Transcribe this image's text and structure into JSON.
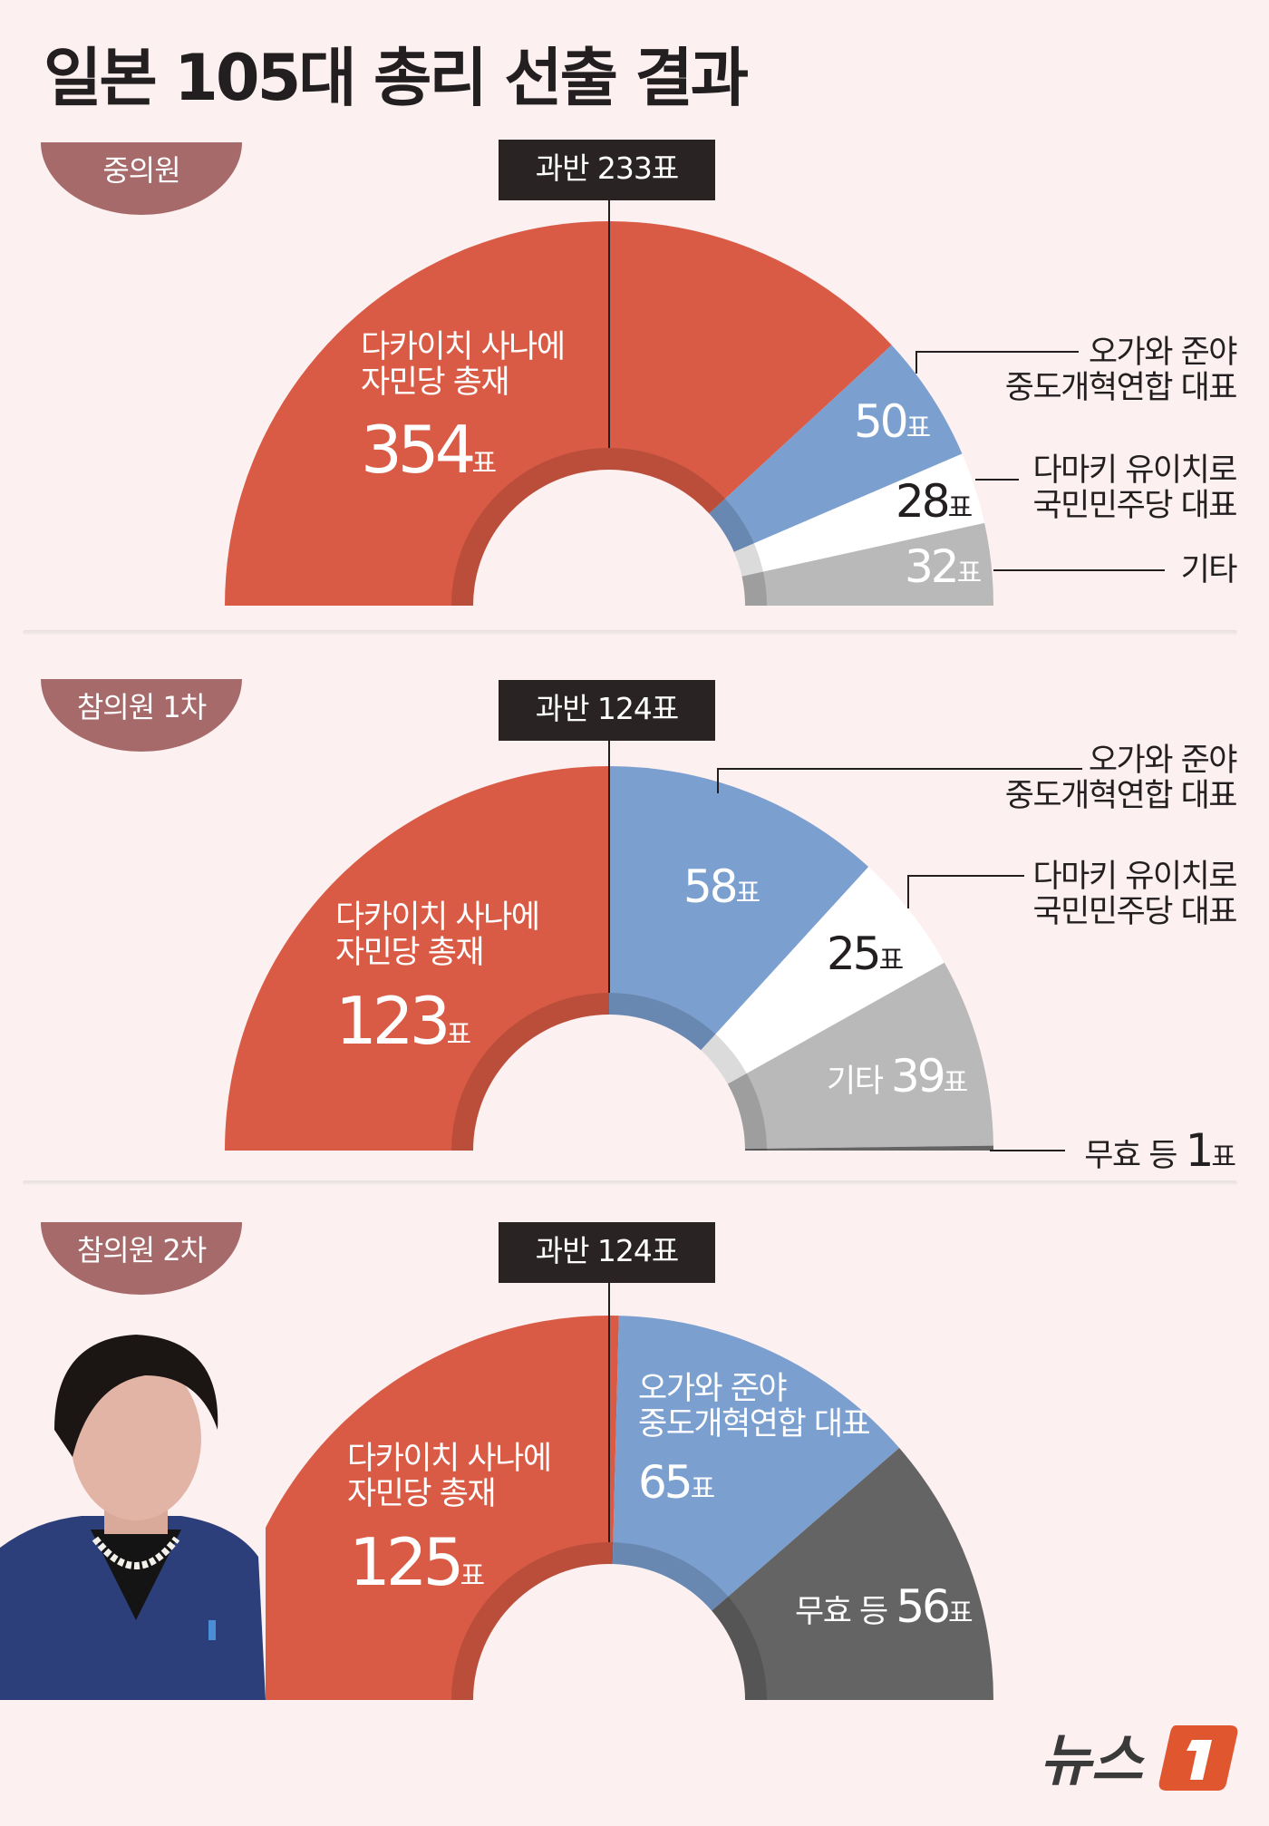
{
  "title": "일본 105대 총리 선출 결과",
  "unit": "표",
  "colors": {
    "background": "#fcf0f1",
    "ldp": "#d95b45",
    "cdp": "#7b9fcf",
    "dpp": "#ffffff",
    "other": "#b9b9b9",
    "invalid": "#646464",
    "tab": "#a66a6a",
    "majority_box": "#2a2323"
  },
  "chart_data": [
    {
      "type": "pie",
      "shape": "half-donut",
      "title": "중의원",
      "majority_label": "과반 233표",
      "series": [
        {
          "name": "다카이치 사나에 자민당 총재",
          "label_lines": [
            "다카이치 사나에",
            "자민당 총재"
          ],
          "value": 354,
          "color": "#d95b45"
        },
        {
          "name": "오가와 준야 중도개혁연합 대표",
          "label_lines": [
            "오가와 준야",
            "중도개혁연합 대표"
          ],
          "value": 50,
          "color": "#7b9fcf"
        },
        {
          "name": "다마키 유이치로 국민민주당 대표",
          "label_lines": [
            "다마키 유이치로",
            "국민민주당 대표"
          ],
          "value": 28,
          "color": "#ffffff"
        },
        {
          "name": "기타",
          "label_lines": [
            "기타"
          ],
          "value": 32,
          "color": "#b9b9b9"
        }
      ]
    },
    {
      "type": "pie",
      "shape": "half-donut",
      "title": "참의원 1차",
      "majority_label": "과반 124표",
      "series": [
        {
          "name": "다카이치 사나에 자민당 총재",
          "label_lines": [
            "다카이치 사나에",
            "자민당 총재"
          ],
          "value": 123,
          "color": "#d95b45"
        },
        {
          "name": "오가와 준야 중도개혁연합 대표",
          "label_lines": [
            "오가와 준야",
            "중도개혁연합 대표"
          ],
          "value": 58,
          "color": "#7b9fcf"
        },
        {
          "name": "다마키 유이치로 국민민주당 대표",
          "label_lines": [
            "다마키 유이치로",
            "국민민주당 대표"
          ],
          "value": 25,
          "color": "#ffffff"
        },
        {
          "name": "기타",
          "label_lines": [
            "기타"
          ],
          "value": 39,
          "color": "#b9b9b9"
        },
        {
          "name": "무효 등",
          "label_lines": [
            "무효 등"
          ],
          "value": 1,
          "color": "#646464"
        }
      ]
    },
    {
      "type": "pie",
      "shape": "half-donut",
      "title": "참의원 2차",
      "majority_label": "과반 124표",
      "series": [
        {
          "name": "다카이치 사나에 자민당 총재",
          "label_lines": [
            "다카이치 사나에",
            "자민당 총재"
          ],
          "value": 125,
          "color": "#d95b45"
        },
        {
          "name": "오가와 준야 중도개혁연합 대표",
          "label_lines": [
            "오가와 준야",
            "중도개혁연합 대표"
          ],
          "value": 65,
          "color": "#7b9fcf"
        },
        {
          "name": "무효 등",
          "label_lines": [
            "무효 등"
          ],
          "value": 56,
          "color": "#646464"
        }
      ]
    }
  ],
  "photo": {
    "subject": "다카이치 사나에"
  },
  "logo": {
    "text": "뉴스1"
  }
}
